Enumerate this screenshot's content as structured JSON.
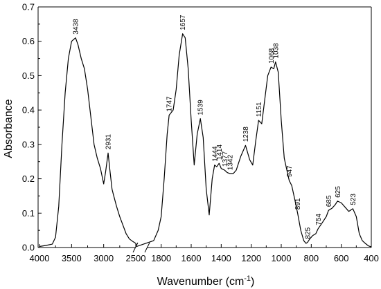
{
  "chart_data": {
    "type": "line",
    "xlabel": "Wavenumber (cm",
    "xlabel_sup": "-1",
    "xlabel_close": ")",
    "ylabel": "Absorbance",
    "x_reversed": true,
    "axis_break": [
      2500,
      1900
    ],
    "ylim": [
      0,
      0.7
    ],
    "yticks": [
      "0.0",
      "0.1",
      "0.2",
      "0.3",
      "0.4",
      "0.5",
      "0.6",
      "0.7"
    ],
    "xticks": [
      "4000",
      "3500",
      "3000",
      "2500",
      "1800",
      "1600",
      "1400",
      "1200",
      "1000",
      "800",
      "600",
      "400"
    ],
    "grid": false,
    "line_color": "#000000",
    "series": [
      {
        "values_left": [
          [
            4000,
            0.003
          ],
          [
            3900,
            0.006
          ],
          [
            3800,
            0.01
          ],
          [
            3750,
            0.03
          ],
          [
            3700,
            0.12
          ],
          [
            3650,
            0.3
          ],
          [
            3600,
            0.45
          ],
          [
            3550,
            0.55
          ],
          [
            3500,
            0.6
          ],
          [
            3438,
            0.61
          ],
          [
            3400,
            0.59
          ],
          [
            3350,
            0.55
          ],
          [
            3300,
            0.52
          ],
          [
            3250,
            0.46
          ],
          [
            3200,
            0.38
          ],
          [
            3150,
            0.3
          ],
          [
            3100,
            0.26
          ],
          [
            3050,
            0.23
          ],
          [
            3000,
            0.185
          ],
          [
            2970,
            0.22
          ],
          [
            2931,
            0.275
          ],
          [
            2900,
            0.22
          ],
          [
            2870,
            0.17
          ],
          [
            2850,
            0.155
          ],
          [
            2800,
            0.12
          ],
          [
            2750,
            0.09
          ],
          [
            2700,
            0.065
          ],
          [
            2650,
            0.04
          ],
          [
            2600,
            0.025
          ],
          [
            2550,
            0.018
          ],
          [
            2500,
            0.012
          ],
          [
            2450,
            0.005
          ]
        ],
        "values_right": [
          [
            1900,
            0.003
          ],
          [
            1850,
            0.02
          ],
          [
            1820,
            0.05
          ],
          [
            1800,
            0.09
          ],
          [
            1780,
            0.2
          ],
          [
            1760,
            0.33
          ],
          [
            1747,
            0.385
          ],
          [
            1720,
            0.4
          ],
          [
            1700,
            0.46
          ],
          [
            1680,
            0.56
          ],
          [
            1657,
            0.622
          ],
          [
            1640,
            0.61
          ],
          [
            1620,
            0.52
          ],
          [
            1600,
            0.37
          ],
          [
            1580,
            0.24
          ],
          [
            1560,
            0.33
          ],
          [
            1539,
            0.375
          ],
          [
            1520,
            0.32
          ],
          [
            1500,
            0.17
          ],
          [
            1480,
            0.095
          ],
          [
            1460,
            0.2
          ],
          [
            1444,
            0.24
          ],
          [
            1430,
            0.235
          ],
          [
            1414,
            0.245
          ],
          [
            1400,
            0.23
          ],
          [
            1377,
            0.225
          ],
          [
            1360,
            0.218
          ],
          [
            1342,
            0.215
          ],
          [
            1320,
            0.215
          ],
          [
            1300,
            0.225
          ],
          [
            1270,
            0.265
          ],
          [
            1238,
            0.297
          ],
          [
            1210,
            0.255
          ],
          [
            1190,
            0.24
          ],
          [
            1170,
            0.31
          ],
          [
            1151,
            0.37
          ],
          [
            1130,
            0.36
          ],
          [
            1110,
            0.43
          ],
          [
            1090,
            0.5
          ],
          [
            1068,
            0.525
          ],
          [
            1050,
            0.52
          ],
          [
            1038,
            0.54
          ],
          [
            1020,
            0.51
          ],
          [
            1000,
            0.37
          ],
          [
            980,
            0.26
          ],
          [
            960,
            0.22
          ],
          [
            947,
            0.195
          ],
          [
            930,
            0.18
          ],
          [
            910,
            0.14
          ],
          [
            891,
            0.1
          ],
          [
            870,
            0.05
          ],
          [
            850,
            0.02
          ],
          [
            835,
            0.012
          ],
          [
            825,
            0.015
          ],
          [
            810,
            0.025
          ],
          [
            790,
            0.035
          ],
          [
            770,
            0.04
          ],
          [
            754,
            0.055
          ],
          [
            730,
            0.07
          ],
          [
            700,
            0.09
          ],
          [
            685,
            0.108
          ],
          [
            660,
            0.115
          ],
          [
            640,
            0.125
          ],
          [
            625,
            0.135
          ],
          [
            600,
            0.13
          ],
          [
            570,
            0.115
          ],
          [
            550,
            0.105
          ],
          [
            523,
            0.113
          ],
          [
            500,
            0.09
          ],
          [
            480,
            0.04
          ],
          [
            460,
            0.02
          ],
          [
            440,
            0.012
          ],
          [
            420,
            0.005
          ],
          [
            400,
            0.002
          ]
        ]
      }
    ],
    "peak_labels": [
      {
        "x": 3438,
        "y": 0.61,
        "text": "3438"
      },
      {
        "x": 2931,
        "y": 0.275,
        "text": "2931"
      },
      {
        "x": 1747,
        "y": 0.385,
        "text": "1747"
      },
      {
        "x": 1657,
        "y": 0.622,
        "text": "1657"
      },
      {
        "x": 1539,
        "y": 0.375,
        "text": "1539"
      },
      {
        "x": 1444,
        "y": 0.24,
        "text": "1444"
      },
      {
        "x": 1414,
        "y": 0.245,
        "text": "1414"
      },
      {
        "x": 1377,
        "y": 0.225,
        "text": "1377"
      },
      {
        "x": 1342,
        "y": 0.215,
        "text": "1342"
      },
      {
        "x": 1238,
        "y": 0.297,
        "text": "1238"
      },
      {
        "x": 1151,
        "y": 0.37,
        "text": "1151"
      },
      {
        "x": 1068,
        "y": 0.525,
        "text": "1068"
      },
      {
        "x": 1038,
        "y": 0.54,
        "text": "1038"
      },
      {
        "x": 947,
        "y": 0.195,
        "text": "947"
      },
      {
        "x": 891,
        "y": 0.1,
        "text": "891"
      },
      {
        "x": 825,
        "y": 0.015,
        "text": "825"
      },
      {
        "x": 754,
        "y": 0.055,
        "text": "754"
      },
      {
        "x": 685,
        "y": 0.108,
        "text": "685"
      },
      {
        "x": 625,
        "y": 0.135,
        "text": "625"
      },
      {
        "x": 523,
        "y": 0.113,
        "text": "523"
      }
    ]
  }
}
